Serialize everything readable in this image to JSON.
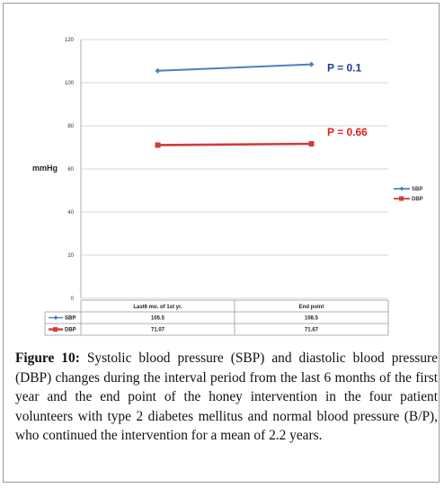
{
  "chart_data": {
    "type": "line",
    "ylabel": "mmHg",
    "ylim": [
      0,
      120
    ],
    "yticks": [
      0,
      20,
      40,
      60,
      80,
      100,
      120
    ],
    "categories": [
      "Last6 mo. of 1st yr.",
      "End point"
    ],
    "series": [
      {
        "name": "SBP",
        "values": [
          105.5,
          108.5
        ],
        "table_values": [
          "105.5",
          "108.5"
        ],
        "color": "#4f7fc0",
        "marker": "diamond"
      },
      {
        "name": "DBP",
        "values": [
          71.07,
          71.67
        ],
        "table_values": [
          "71.07",
          "71.67"
        ],
        "color": "#d23b3b",
        "marker": "square"
      }
    ],
    "annotations": [
      {
        "text": "P = 0.1",
        "series": "SBP",
        "color": "#1f3f8a"
      },
      {
        "text": "P = 0.66",
        "series": "DBP",
        "color": "#e02020"
      }
    ],
    "legend": "right",
    "grid": true
  },
  "caption": {
    "label": "Figure 10:",
    "text": " Systolic blood pressure (SBP) and diastolic blood pressure (DBP) changes during the interval period from the last 6 months of the first year and the end point of the honey intervention in the four patient volunteers with type 2 diabetes mellitus and normal blood pressure (B/P), who continued the intervention for a mean of 2.2 years."
  }
}
